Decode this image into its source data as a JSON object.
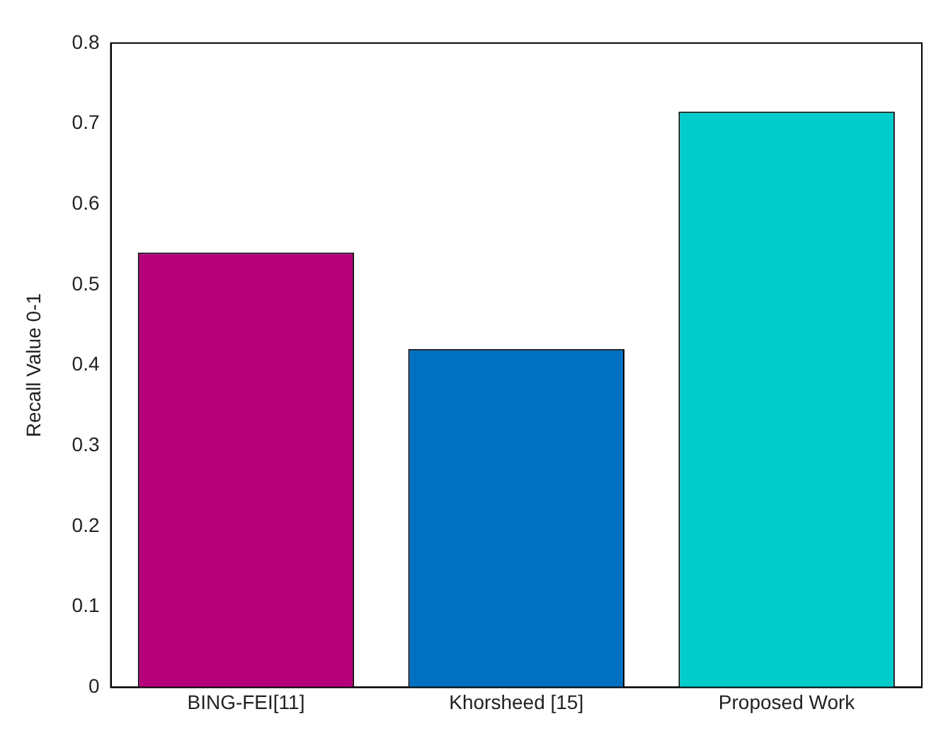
{
  "chart_data": {
    "type": "bar",
    "ylabel": "Recall Value 0-1",
    "categories": [
      "BING-FEI[11]",
      "Khorsheed [15]",
      "Proposed Work"
    ],
    "values": [
      0.54,
      0.42,
      0.715
    ],
    "colors": [
      "#b5007a",
      "#0070c0",
      "#00cccc"
    ],
    "ylim": [
      0,
      0.8
    ],
    "yticks": [
      0,
      0.1,
      0.2,
      0.3,
      0.4,
      0.5,
      0.6,
      0.7,
      0.8
    ],
    "grid": false,
    "legend": false
  }
}
